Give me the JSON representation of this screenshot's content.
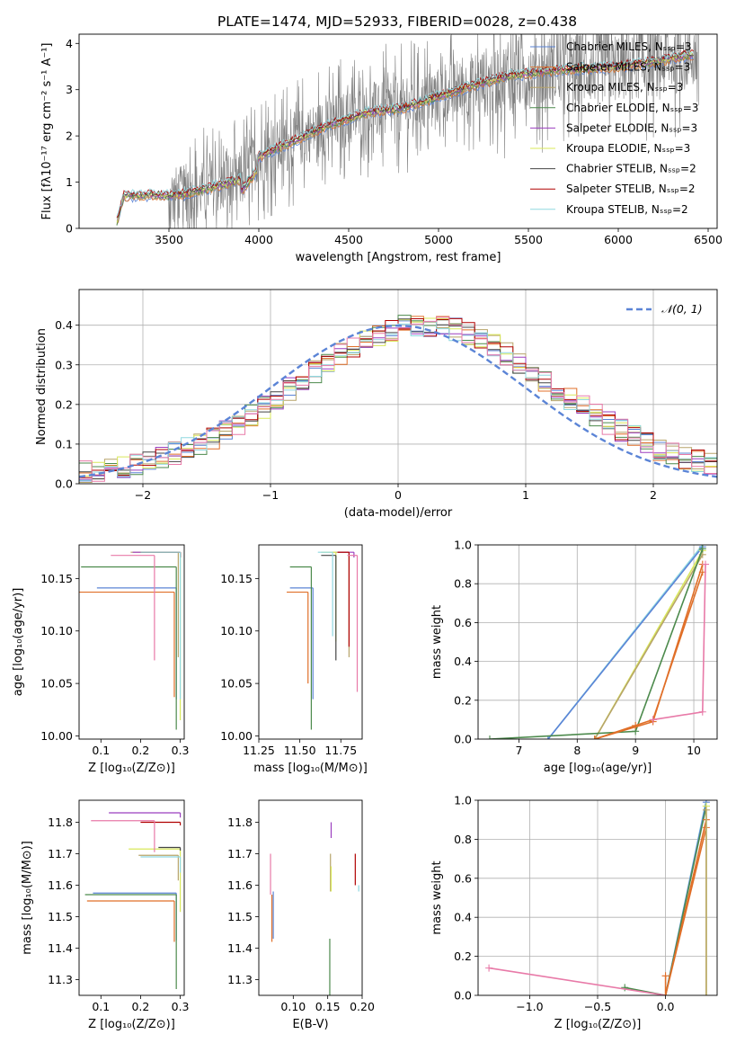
{
  "figure": {
    "title": "PLATE=1474, MJD=52933, FIBERID=0028, z=0.438",
    "series_colors": [
      "#5b84d6",
      "#e06f28",
      "#b7a46a",
      "#4c8a4c",
      "#9b3fbf",
      "#d9e85a",
      "#444444",
      "#b00000",
      "#8fd8e0"
    ],
    "extra_colors": {
      "pink": "#e87aa8",
      "fit": "#ee7733",
      "gray": "#7f7f7f",
      "dashed": "#5b84d6"
    }
  },
  "chart_data": [
    {
      "id": "spectrum",
      "type": "line",
      "title": "PLATE=1474, MJD=52933, FIBERID=0028, z=0.438",
      "xlabel": "wavelength [Angstrom, rest frame]",
      "ylabel": "Flux [fλ10⁻¹⁷ erg cm⁻² s⁻¹ A⁻¹]",
      "xlim": [
        3000,
        6550
      ],
      "ylim": [
        0,
        4.2
      ],
      "xticks": [
        3500,
        4000,
        4500,
        5000,
        5500,
        6000,
        6500
      ],
      "yticks": [
        0,
        1,
        2,
        3,
        4
      ],
      "legend_position": "top-right",
      "legend": [
        "Chabrier MILES, Nₛₛₚ=3",
        "Salpeter MILES, Nₛₛₚ=3",
        "Kroupa MILES, Nₛₛₚ=3",
        "Chabrier ELODIE, Nₛₛₚ=3",
        "Salpeter ELODIE, Nₛₛₚ=3",
        "Kroupa ELODIE, Nₛₛₚ=3",
        "Chabrier STELIB, Nₛₛₚ=2",
        "Salpeter STELIB, Nₛₛₚ=2",
        "Kroupa STELIB, Nₛₛₚ=2"
      ],
      "continuum": {
        "x": [
          3200,
          3250,
          3400,
          3500,
          3600,
          3800,
          3900,
          4000,
          4200,
          4400,
          4600,
          4800,
          5000,
          5200,
          5400,
          5600,
          5800,
          6000,
          6200,
          6400
        ],
        "y": [
          0,
          0.7,
          0.72,
          0.7,
          0.75,
          0.95,
          1.05,
          1.55,
          1.9,
          2.25,
          2.5,
          2.6,
          2.85,
          3.1,
          3.3,
          3.4,
          3.45,
          3.5,
          3.6,
          3.75
        ]
      },
      "noise_start": 3500,
      "noise_end": 6450
    },
    {
      "id": "residuals",
      "type": "histogram",
      "xlabel": "(data-model)/error",
      "ylabel": "Normed distribution",
      "xlim": [
        -2.5,
        2.5
      ],
      "ylim": [
        0,
        0.49
      ],
      "xticks": [
        -2,
        -1,
        0,
        1,
        2
      ],
      "yticks": [
        0,
        0.1,
        0.2,
        0.3,
        0.4
      ],
      "grid": true,
      "legend_position": "top-right",
      "legend": [
        "𝒩(0, 1)"
      ],
      "bin_width": 0.1,
      "bins_start": -2.5,
      "profile_center": 0.2,
      "profile_sigma": 1.0,
      "profile_peak": 0.38
    },
    {
      "id": "age_vs_Z",
      "type": "scatter",
      "xlabel": "Z [log₁₀(Z/Z⊙)]",
      "ylabel": "age  [log₁₀(age/yr)]",
      "xlim": [
        0.045,
        0.31
      ],
      "ylim": [
        9.997,
        10.182
      ],
      "xticks": [
        0.1,
        0.2,
        0.3
      ],
      "yticks": [
        10.0,
        10.05,
        10.1,
        10.15
      ],
      "points": [
        {
          "x": 0.29,
          "y": 10.141,
          "xerr": 0.2,
          "yerr": 0.106,
          "c": 0
        },
        {
          "x": 0.285,
          "y": 10.137,
          "xerr": 0.24,
          "yerr": 0.1,
          "c": 1
        },
        {
          "x": 0.295,
          "y": 10.175,
          "xerr": 0.12,
          "yerr": 0.1,
          "c": 2
        },
        {
          "x": 0.29,
          "y": 10.161,
          "xerr": 0.24,
          "yerr": 0.155,
          "c": 3
        },
        {
          "x": 0.3,
          "y": 10.175,
          "xerr": 0.12,
          "yerr": 0.005,
          "c": 4
        },
        {
          "x": 0.3,
          "y": 10.175,
          "xerr": 0.1,
          "yerr": 0.16,
          "c": 5
        },
        {
          "x": 0.3,
          "y": 10.175,
          "xerr": 0.1,
          "yerr": 0.005,
          "c": 6
        },
        {
          "x": 0.3,
          "y": 10.175,
          "xerr": 0.1,
          "yerr": 0.005,
          "c": 7
        },
        {
          "x": 0.3,
          "y": 10.175,
          "xerr": 0.1,
          "yerr": 0.14,
          "c": 8
        },
        {
          "x": 0.235,
          "y": 10.172,
          "xerr": 0.11,
          "yerr": 0.1,
          "c": 9
        }
      ]
    },
    {
      "id": "age_vs_mass",
      "type": "scatter",
      "xlabel": "mass [log₁₀(M/M⊙)]",
      "ylabel": "",
      "xlim": [
        11.25,
        11.88
      ],
      "ylim": [
        9.997,
        10.182
      ],
      "xticks": [
        11.25,
        11.5,
        11.75
      ],
      "yticks": [
        10.0,
        10.05,
        10.1,
        10.15
      ],
      "points": [
        {
          "x": 11.58,
          "y": 10.141,
          "xerr": 0.14,
          "yerr": 0.106,
          "c": 0
        },
        {
          "x": 11.55,
          "y": 10.137,
          "xerr": 0.13,
          "yerr": 0.087,
          "c": 1
        },
        {
          "x": 11.8,
          "y": 10.175,
          "xerr": 0.1,
          "yerr": 0.1,
          "c": 2
        },
        {
          "x": 11.57,
          "y": 10.161,
          "xerr": 0.13,
          "yerr": 0.155,
          "c": 3
        },
        {
          "x": 11.83,
          "y": 10.175,
          "xerr": 0.1,
          "yerr": 0.005,
          "c": 4
        },
        {
          "x": 11.72,
          "y": 10.175,
          "xerr": 0.09,
          "yerr": 0.085,
          "c": 5
        },
        {
          "x": 11.72,
          "y": 10.172,
          "xerr": 0.09,
          "yerr": 0.1,
          "c": 6
        },
        {
          "x": 11.8,
          "y": 10.175,
          "xerr": 0.07,
          "yerr": 0.09,
          "c": 7
        },
        {
          "x": 11.7,
          "y": 10.175,
          "xerr": 0.09,
          "yerr": 0.08,
          "c": 8
        },
        {
          "x": 11.85,
          "y": 10.172,
          "xerr": 0.06,
          "yerr": 0.13,
          "c": 9
        }
      ]
    },
    {
      "id": "mass_weight_vs_age",
      "type": "line",
      "xlabel": "age  [log₁₀(age/yr)]",
      "ylabel": "mass weight",
      "xlim": [
        6.3,
        10.4
      ],
      "ylim": [
        0,
        1.0
      ],
      "xticks": [
        7,
        8,
        9,
        10
      ],
      "yticks": [
        0.0,
        0.2,
        0.4,
        0.6,
        0.8,
        1.0
      ],
      "grid": true,
      "series": [
        {
          "x": [
            7.5,
            10.15
          ],
          "y": [
            0.0,
            1.0
          ],
          "c": 8
        },
        {
          "x": [
            7.5,
            10.15
          ],
          "y": [
            0.0,
            0.99
          ],
          "c": 0
        },
        {
          "x": [
            8.3,
            10.15
          ],
          "y": [
            0.0,
            0.97
          ],
          "c": 5
        },
        {
          "x": [
            8.3,
            10.15
          ],
          "y": [
            0.0,
            0.95
          ],
          "c": 2
        },
        {
          "x": [
            6.5,
            9.0,
            10.15
          ],
          "y": [
            0.0,
            0.04,
            0.98
          ],
          "c": 3
        },
        {
          "x": [
            8.3,
            9.3,
            10.15
          ],
          "y": [
            0.0,
            0.09,
            0.9
          ],
          "c": 1
        },
        {
          "x": [
            8.3,
            9.0,
            9.3,
            10.15
          ],
          "y": [
            0.0,
            0.07,
            0.1,
            0.86
          ],
          "c": 1
        },
        {
          "x": [
            9.3,
            10.15,
            10.2
          ],
          "y": [
            0.1,
            0.14,
            0.9
          ],
          "c": 9
        }
      ]
    },
    {
      "id": "mass_vs_Z",
      "type": "scatter",
      "xlabel": "Z [log₁₀(Z/Z⊙)]",
      "ylabel": "mass [log₁₀(M/M⊙)]",
      "xlim": [
        0.045,
        0.31
      ],
      "ylim": [
        11.25,
        11.87
      ],
      "xticks": [
        0.1,
        0.2,
        0.3
      ],
      "yticks": [
        11.3,
        11.4,
        11.5,
        11.6,
        11.7,
        11.8
      ],
      "points": [
        {
          "x": 0.29,
          "y": 11.575,
          "xerr": 0.21,
          "yerr": 0.15,
          "c": 0
        },
        {
          "x": 0.285,
          "y": 11.55,
          "xerr": 0.22,
          "yerr": 0.13,
          "c": 1
        },
        {
          "x": 0.295,
          "y": 11.695,
          "xerr": 0.1,
          "yerr": 0.08,
          "c": 2
        },
        {
          "x": 0.29,
          "y": 11.57,
          "xerr": 0.23,
          "yerr": 0.3,
          "c": 3
        },
        {
          "x": 0.3,
          "y": 11.83,
          "xerr": 0.18,
          "yerr": 0.015,
          "c": 4
        },
        {
          "x": 0.3,
          "y": 11.715,
          "xerr": 0.13,
          "yerr": 0.2,
          "c": 5
        },
        {
          "x": 0.3,
          "y": 11.72,
          "xerr": 0.055,
          "yerr": 0.01,
          "c": 6
        },
        {
          "x": 0.3,
          "y": 11.8,
          "xerr": 0.1,
          "yerr": 0.01,
          "c": 7
        },
        {
          "x": 0.3,
          "y": 11.69,
          "xerr": 0.1,
          "yerr": 0.05,
          "c": 8
        },
        {
          "x": 0.235,
          "y": 11.805,
          "xerr": 0.16,
          "yerr": 0.1,
          "c": 9
        }
      ]
    },
    {
      "id": "mass_vs_ebv",
      "type": "scatter",
      "xlabel": "E(B-V)",
      "ylabel": "",
      "xlim": [
        0.05,
        0.2
      ],
      "ylim": [
        11.25,
        11.87
      ],
      "xticks": [
        0.1,
        0.15,
        0.2
      ],
      "yticks": [
        11.3,
        11.4,
        11.5,
        11.6,
        11.7,
        11.8
      ],
      "points": [
        {
          "x": 0.071,
          "y": 11.58,
          "yerr": 0.15,
          "c": 0
        },
        {
          "x": 0.069,
          "y": 11.57,
          "yerr": 0.15,
          "c": 1
        },
        {
          "x": 0.154,
          "y": 11.7,
          "yerr": 0.12,
          "c": 2
        },
        {
          "x": 0.153,
          "y": 11.43,
          "yerr": 0.18,
          "c": 3
        },
        {
          "x": 0.155,
          "y": 11.8,
          "yerr": 0.05,
          "c": 4
        },
        {
          "x": 0.155,
          "y": 11.66,
          "yerr": 0.08,
          "c": 5
        },
        {
          "x": 0.19,
          "y": 11.7,
          "yerr": 0.1,
          "c": 7
        },
        {
          "x": 0.195,
          "y": 11.6,
          "yerr": 0.02,
          "c": 8
        },
        {
          "x": 0.067,
          "y": 11.7,
          "yerr": 0.13,
          "c": 9
        }
      ]
    },
    {
      "id": "mass_weight_vs_Z",
      "type": "line",
      "xlabel": "Z [log₁₀(Z/Z⊙)]",
      "ylabel": "mass weight",
      "xlim": [
        -1.38,
        0.38
      ],
      "ylim": [
        0,
        1.0
      ],
      "xticks": [
        -1.0,
        -0.5,
        0.0
      ],
      "yticks": [
        0.0,
        0.2,
        0.4,
        0.6,
        0.8,
        1.0
      ],
      "grid": true,
      "series": [
        {
          "x": [
            0.0,
            0.3
          ],
          "y": [
            0.0,
            1.0
          ],
          "c": 8
        },
        {
          "x": [
            0.0,
            0.3
          ],
          "y": [
            0.0,
            0.99
          ],
          "c": 0
        },
        {
          "x": [
            0.0,
            0.3
          ],
          "y": [
            0.0,
            0.97
          ],
          "c": 3
        },
        {
          "x": [
            0.0,
            0.3
          ],
          "y": [
            0.0,
            0.9
          ],
          "c": 1
        },
        {
          "x": [
            0.0,
            0.3
          ],
          "y": [
            0.0,
            0.86
          ],
          "c": 1
        },
        {
          "x": [
            -0.3,
            0.0
          ],
          "y": [
            0.04,
            0.0
          ],
          "c": 3
        },
        {
          "x": [
            -1.3,
            0.0
          ],
          "y": [
            0.14,
            0.0
          ],
          "c": 9
        },
        {
          "x": [
            0.3,
            0.3
          ],
          "y": [
            0.0,
            0.97
          ],
          "c": 5
        },
        {
          "x": [
            0.3,
            0.3
          ],
          "y": [
            0.0,
            0.95
          ],
          "c": 2
        },
        {
          "x": [
            0.0,
            0.0
          ],
          "y": [
            0.0,
            0.1
          ],
          "c": 1
        }
      ]
    }
  ]
}
